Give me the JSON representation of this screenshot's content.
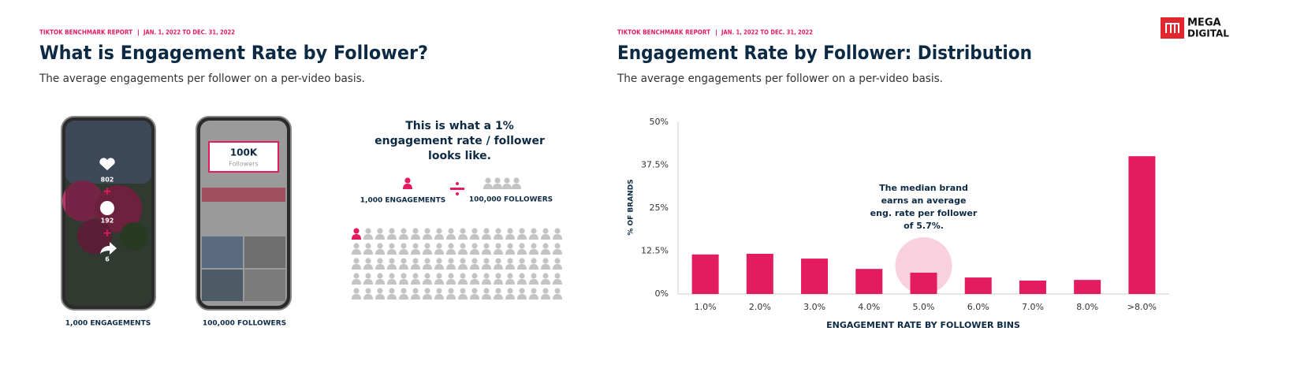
{
  "logo": {
    "line1": "MEGA",
    "line2": "DIGITAL"
  },
  "left": {
    "report": "TIKTOK BENCHMARK REPORT",
    "separator": "|",
    "dates": "JAN. 1, 2022 TO DEC. 31, 2022",
    "title": "What is Engagement Rate by Follower?",
    "subtitle": "The average engagements per follower on a per-video basis.",
    "phone1": {
      "likes": 802,
      "comments": 192,
      "shares": 6,
      "caption": "1,000 ENGAGEMENTS"
    },
    "phone2": {
      "count": "100K",
      "label": "Followers",
      "caption": "100,000 FOLLOWERS"
    },
    "explainer": [
      "This is what a 1%",
      "engagement rate / follower",
      "looks like."
    ],
    "engagements": "1,000 ENGAGEMENTS",
    "followers": "100,000 FOLLOWERS"
  },
  "chart_data": {
    "type": "bar",
    "report": "TIKTOK BENCHMARK REPORT",
    "separator": "|",
    "dates": "JAN. 1, 2022 TO DEC. 31, 2022",
    "title": "Engagement Rate by Follower: Distribution",
    "subtitle": "The average engagements per follower on a per-video basis.",
    "annotation": [
      "The median brand",
      "earns an average",
      "eng. rate per follower",
      "of 5.7%."
    ],
    "x_label": "ENGAGEMENT RATE BY FOLLOWER BINS",
    "y_label": "% OF BRANDS",
    "categories": [
      "1.0%",
      "2.0%",
      "3.0%",
      "4.0%",
      "5.0%",
      "6.0%",
      "7.0%",
      "8.0%",
      ">8.0%"
    ],
    "values": [
      11.5,
      11.7,
      10.3,
      7.3,
      6.2,
      4.8,
      3.9,
      4.1,
      40.1
    ],
    "color": "#e31b5f",
    "highlight_color": "#f9d0dd",
    "ylim": [
      0,
      50
    ],
    "yticks": [
      {
        "value": 0,
        "label": "0%"
      },
      {
        "value": 12.5,
        "label": "12.5%"
      },
      {
        "value": 25,
        "label": "25%"
      },
      {
        "value": 37.5,
        "label": "37.5%"
      },
      {
        "value": 50,
        "label": "50%"
      }
    ],
    "grid": false
  }
}
